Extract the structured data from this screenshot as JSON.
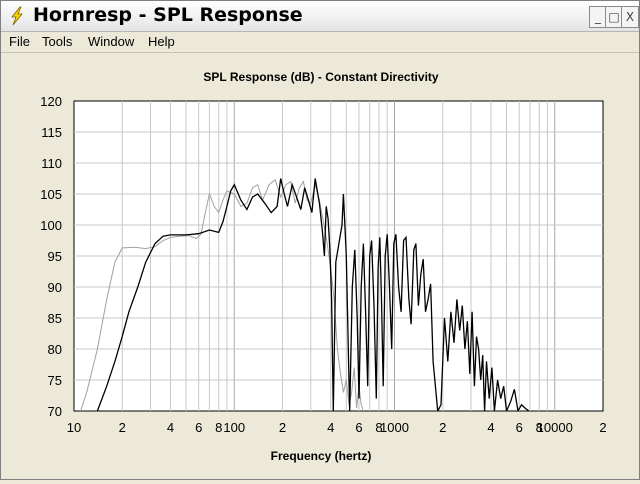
{
  "window": {
    "title": "Hornresp - SPL Response",
    "icon": "lightning-bolt-icon",
    "buttons": {
      "minimize": "_",
      "maximize": "□",
      "close": "X"
    }
  },
  "menu": [
    "File",
    "Tools",
    "Window",
    "Help"
  ],
  "colors": {
    "primary_series": "#000000",
    "secondary_series": "#a0a0a0",
    "grid": "#c8c8c8",
    "plot_bg": "#ffffff"
  },
  "chart_data": {
    "type": "line",
    "title": "SPL Response (dB) - Constant Directivity",
    "xlabel": "Frequency (hertz)",
    "ylabel": "",
    "xscale": "log",
    "xlim": [
      10,
      20000
    ],
    "ylim": [
      70,
      120
    ],
    "x_tick_labels": [
      "10",
      "2",
      "4",
      "6",
      "8",
      "100",
      "2",
      "4",
      "6",
      "8",
      "1000",
      "2",
      "4",
      "6",
      "8",
      "10000",
      "2"
    ],
    "y_ticks": [
      70,
      75,
      80,
      85,
      90,
      95,
      100,
      105,
      110,
      115,
      120
    ],
    "grid": true,
    "series": [
      {
        "values": [
          [
            14,
            70
          ],
          [
            16,
            74
          ],
          [
            18,
            78
          ],
          [
            20,
            82
          ],
          [
            22,
            86
          ],
          [
            25,
            90
          ],
          [
            28,
            94
          ],
          [
            32,
            97
          ],
          [
            36,
            98.2
          ],
          [
            40,
            98.4
          ],
          [
            50,
            98.4
          ],
          [
            60,
            98.6
          ],
          [
            70,
            99.2
          ],
          [
            80,
            98.8
          ],
          [
            85,
            100.5
          ],
          [
            90,
            103
          ],
          [
            95,
            105.5
          ],
          [
            100,
            106.5
          ],
          [
            110,
            104
          ],
          [
            120,
            102.5
          ],
          [
            130,
            104.5
          ],
          [
            140,
            105
          ],
          [
            155,
            103.5
          ],
          [
            170,
            102
          ],
          [
            185,
            103
          ],
          [
            195,
            107.5
          ],
          [
            205,
            105
          ],
          [
            215,
            103
          ],
          [
            230,
            106.5
          ],
          [
            245,
            104.5
          ],
          [
            260,
            102.5
          ],
          [
            275,
            106
          ],
          [
            290,
            104
          ],
          [
            305,
            102
          ],
          [
            320,
            107.5
          ],
          [
            340,
            103.5
          ],
          [
            355,
            99
          ],
          [
            365,
            95
          ],
          [
            375,
            103
          ],
          [
            385,
            101
          ],
          [
            395,
            96
          ],
          [
            405,
            88
          ],
          [
            415,
            70
          ],
          [
            430,
            94
          ],
          [
            450,
            97
          ],
          [
            470,
            100
          ],
          [
            480,
            105
          ],
          [
            500,
            95
          ],
          [
            515,
            80
          ],
          [
            525,
            70
          ],
          [
            545,
            90
          ],
          [
            565,
            96
          ],
          [
            585,
            85
          ],
          [
            600,
            72
          ],
          [
            620,
            90
          ],
          [
            640,
            97
          ],
          [
            660,
            86
          ],
          [
            680,
            74
          ],
          [
            700,
            95
          ],
          [
            720,
            97.5
          ],
          [
            745,
            87
          ],
          [
            770,
            72
          ],
          [
            790,
            93
          ],
          [
            810,
            98
          ],
          [
            830,
            88
          ],
          [
            850,
            74
          ],
          [
            875,
            95
          ],
          [
            900,
            98.5
          ],
          [
            930,
            90
          ],
          [
            960,
            80
          ],
          [
            990,
            97
          ],
          [
            1020,
            98.5
          ],
          [
            1060,
            90
          ],
          [
            1100,
            86
          ],
          [
            1140,
            97.5
          ],
          [
            1180,
            98
          ],
          [
            1230,
            88
          ],
          [
            1270,
            84
          ],
          [
            1320,
            96
          ],
          [
            1360,
            97
          ],
          [
            1410,
            87
          ],
          [
            1460,
            92
          ],
          [
            1510,
            94.5
          ],
          [
            1560,
            86
          ],
          [
            1620,
            88
          ],
          [
            1680,
            90.5
          ],
          [
            1740,
            78
          ],
          [
            1800,
            74
          ],
          [
            1860,
            70
          ],
          [
            1950,
            71
          ],
          [
            2050,
            85
          ],
          [
            2150,
            78
          ],
          [
            2250,
            86
          ],
          [
            2350,
            81
          ],
          [
            2450,
            88
          ],
          [
            2550,
            83
          ],
          [
            2650,
            87
          ],
          [
            2750,
            80
          ],
          [
            2850,
            84.5
          ],
          [
            2950,
            76
          ],
          [
            3050,
            86
          ],
          [
            3150,
            74
          ],
          [
            3250,
            82
          ],
          [
            3350,
            80
          ],
          [
            3450,
            75
          ],
          [
            3550,
            79
          ],
          [
            3650,
            70
          ],
          [
            3750,
            78
          ],
          [
            3900,
            72
          ],
          [
            4050,
            77
          ],
          [
            4200,
            70
          ],
          [
            4400,
            75
          ],
          [
            4600,
            72
          ],
          [
            4800,
            74
          ],
          [
            5000,
            70
          ],
          [
            5300,
            71.5
          ],
          [
            5600,
            73.5
          ],
          [
            5900,
            70
          ],
          [
            6200,
            71
          ],
          [
            6500,
            70.5
          ],
          [
            6900,
            70
          ]
        ]
      },
      {
        "values": [
          [
            11,
            70
          ],
          [
            12,
            73
          ],
          [
            14,
            80
          ],
          [
            16,
            88
          ],
          [
            18,
            94
          ],
          [
            20,
            96.3
          ],
          [
            24,
            96.4
          ],
          [
            28,
            96.2
          ],
          [
            32,
            96.5
          ],
          [
            36,
            97.5
          ],
          [
            40,
            98
          ],
          [
            46,
            98.2
          ],
          [
            52,
            98.3
          ],
          [
            58,
            97.8
          ],
          [
            62,
            98.5
          ],
          [
            66,
            102
          ],
          [
            70,
            105
          ],
          [
            75,
            103
          ],
          [
            80,
            102
          ],
          [
            85,
            104
          ],
          [
            90,
            105.5
          ],
          [
            100,
            105
          ],
          [
            110,
            103
          ],
          [
            120,
            103.5
          ],
          [
            130,
            106
          ],
          [
            140,
            106.5
          ],
          [
            150,
            104
          ],
          [
            165,
            106.5
          ],
          [
            180,
            107.3
          ],
          [
            195,
            104.5
          ],
          [
            210,
            106.5
          ],
          [
            225,
            107
          ],
          [
            240,
            103.5
          ],
          [
            255,
            106
          ],
          [
            270,
            107
          ],
          [
            285,
            104
          ],
          [
            300,
            103.5
          ],
          [
            320,
            106.5
          ],
          [
            340,
            104
          ],
          [
            360,
            100.5
          ],
          [
            380,
            97
          ],
          [
            400,
            93
          ],
          [
            420,
            88
          ],
          [
            440,
            80
          ],
          [
            460,
            76
          ],
          [
            480,
            73
          ],
          [
            500,
            75
          ],
          [
            520,
            71
          ],
          [
            540,
            73
          ],
          [
            560,
            77
          ],
          [
            580,
            70.5
          ],
          [
            600,
            74
          ],
          [
            620,
            71
          ],
          [
            640,
            70
          ]
        ]
      }
    ]
  }
}
